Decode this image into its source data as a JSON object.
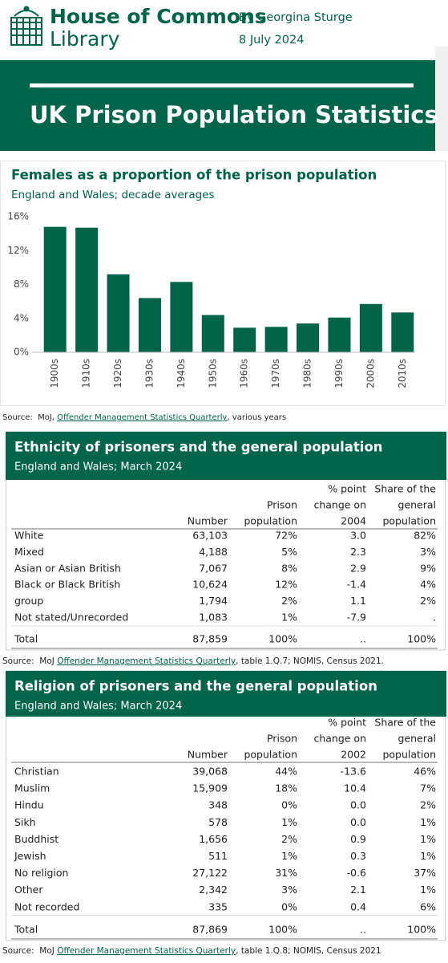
{
  "header": {
    "logo_line1": "House of Commons",
    "logo_line2": "Library",
    "author": "By Georgina Sturge",
    "date": "8 July 2024"
  },
  "banner": {
    "title": "UK Prison Population Statistics"
  },
  "chart_data": {
    "type": "bar",
    "title": "Females as a proportion of the prison population",
    "subtitle": "England and Wales; decade averages",
    "categories": [
      "1900s",
      "1910s",
      "1920s",
      "1930s",
      "1940s",
      "1950s",
      "1960s",
      "1970s",
      "1980s",
      "1990s",
      "2000s",
      "2010s"
    ],
    "values": [
      14.8,
      14.7,
      9.2,
      6.4,
      8.3,
      4.4,
      2.9,
      3.0,
      3.4,
      4.1,
      5.7,
      4.7
    ],
    "color": "#006548",
    "ylim": [
      0,
      16
    ],
    "yticks": [
      {
        "value": 0,
        "label": "0%"
      },
      {
        "value": 4,
        "label": "4%"
      },
      {
        "value": 8,
        "label": "8%"
      },
      {
        "value": 12,
        "label": "12%"
      },
      {
        "value": 16,
        "label": "16%"
      }
    ],
    "source": {
      "prefix": "Source:  MoJ, ",
      "link": "Offender Management Statistics Quarterly",
      "suffix": ", various years"
    }
  },
  "tables": [
    {
      "title": "Ethnicity of prisoners and the general population",
      "subtitle": "England and Wales; March 2024",
      "header": [
        [
          "Number"
        ],
        [
          "Prison",
          "population"
        ],
        [
          "% point",
          "change on",
          "2004"
        ],
        [
          "Share of the",
          "general",
          "population"
        ]
      ],
      "rows": [
        [
          "White",
          "63,103",
          "72%",
          "3.0",
          "82%"
        ],
        [
          "Mixed",
          "4,188",
          "5%",
          "2.3",
          "3%"
        ],
        [
          "Asian or Asian British",
          "7,067",
          "8%",
          "2.9",
          "9%"
        ],
        [
          "Black or Black British",
          "10,624",
          "12%",
          "-1.4",
          "4%"
        ],
        [
          "group",
          "1,794",
          "2%",
          "1.1",
          "2%"
        ],
        [
          "Not stated/Unrecorded",
          "1,083",
          "1%",
          "-7.9",
          "."
        ]
      ],
      "total": [
        "Total",
        "87,859",
        "100%",
        "..",
        "100%"
      ],
      "source": {
        "prefix": "Source:  MoJ ",
        "link": "Offender Management Statistics Quarterly",
        "suffix": ", table 1.Q.7; NOMIS, Census 2021."
      }
    },
    {
      "title": "Religion of prisoners and the general population",
      "subtitle": "England and Wales; March 2024",
      "header": [
        [
          "Number"
        ],
        [
          "Prison",
          "population"
        ],
        [
          "% point",
          "change on",
          "2002"
        ],
        [
          "Share of the",
          "general",
          "population"
        ]
      ],
      "rows": [
        [
          "Christian",
          "39,068",
          "44%",
          "-13.6",
          "46%"
        ],
        [
          "Muslim",
          "15,909",
          "18%",
          "10.4",
          "7%"
        ],
        [
          "Hindu",
          "348",
          "0%",
          "0.0",
          "2%"
        ],
        [
          "Sikh",
          "578",
          "1%",
          "0.0",
          "1%"
        ],
        [
          "Buddhist",
          "1,656",
          "2%",
          "0.9",
          "1%"
        ],
        [
          "Jewish",
          "511",
          "1%",
          "0.3",
          "1%"
        ],
        [
          "No religion",
          "27,122",
          "31%",
          "-0.6",
          "37%"
        ],
        [
          "Other",
          "2,342",
          "3%",
          "2.1",
          "1%"
        ],
        [
          "Not recorded",
          "335",
          "0%",
          "0.4",
          "6%"
        ]
      ],
      "total": [
        "Total",
        "87,869",
        "100%",
        "..",
        "100%"
      ],
      "source": {
        "prefix": "Source:  MoJ ",
        "link": "Offender Management Statistics Quarterly",
        "suffix": ", table 1.Q.8; NOMIS, Census 2021"
      }
    }
  ]
}
